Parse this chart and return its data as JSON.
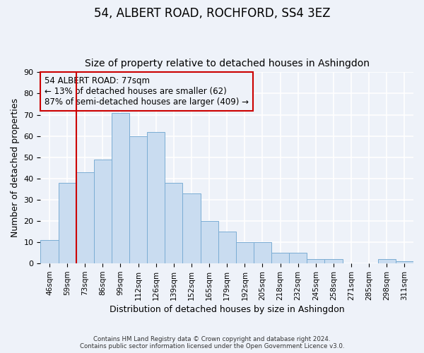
{
  "title": "54, ALBERT ROAD, ROCHFORD, SS4 3EZ",
  "subtitle": "Size of property relative to detached houses in Ashingdon",
  "xlabel": "Distribution of detached houses by size in Ashingdon",
  "ylabel": "Number of detached properties",
  "bar_labels": [
    "46sqm",
    "59sqm",
    "73sqm",
    "86sqm",
    "99sqm",
    "112sqm",
    "126sqm",
    "139sqm",
    "152sqm",
    "165sqm",
    "179sqm",
    "192sqm",
    "205sqm",
    "218sqm",
    "232sqm",
    "245sqm",
    "258sqm",
    "271sqm",
    "285sqm",
    "298sqm",
    "311sqm"
  ],
  "bar_values": [
    11,
    38,
    43,
    49,
    71,
    60,
    62,
    38,
    33,
    20,
    15,
    10,
    10,
    5,
    5,
    2,
    2,
    0,
    0,
    2,
    1
  ],
  "bar_color": "#c9dcf0",
  "bar_edge_color": "#7badd4",
  "ylim": [
    0,
    90
  ],
  "yticks": [
    0,
    10,
    20,
    30,
    40,
    50,
    60,
    70,
    80,
    90
  ],
  "red_line_x": 1.5,
  "red_line_color": "#cc0000",
  "annotation_title": "54 ALBERT ROAD: 77sqm",
  "annotation_line1": "← 13% of detached houses are smaller (62)",
  "annotation_line2": "87% of semi-detached houses are larger (409) →",
  "annotation_box_color": "#cc0000",
  "footer_line1": "Contains HM Land Registry data © Crown copyright and database right 2024.",
  "footer_line2": "Contains public sector information licensed under the Open Government Licence v3.0.",
  "background_color": "#eef2f9",
  "grid_color": "#ffffff",
  "title_fontsize": 12,
  "subtitle_fontsize": 10
}
